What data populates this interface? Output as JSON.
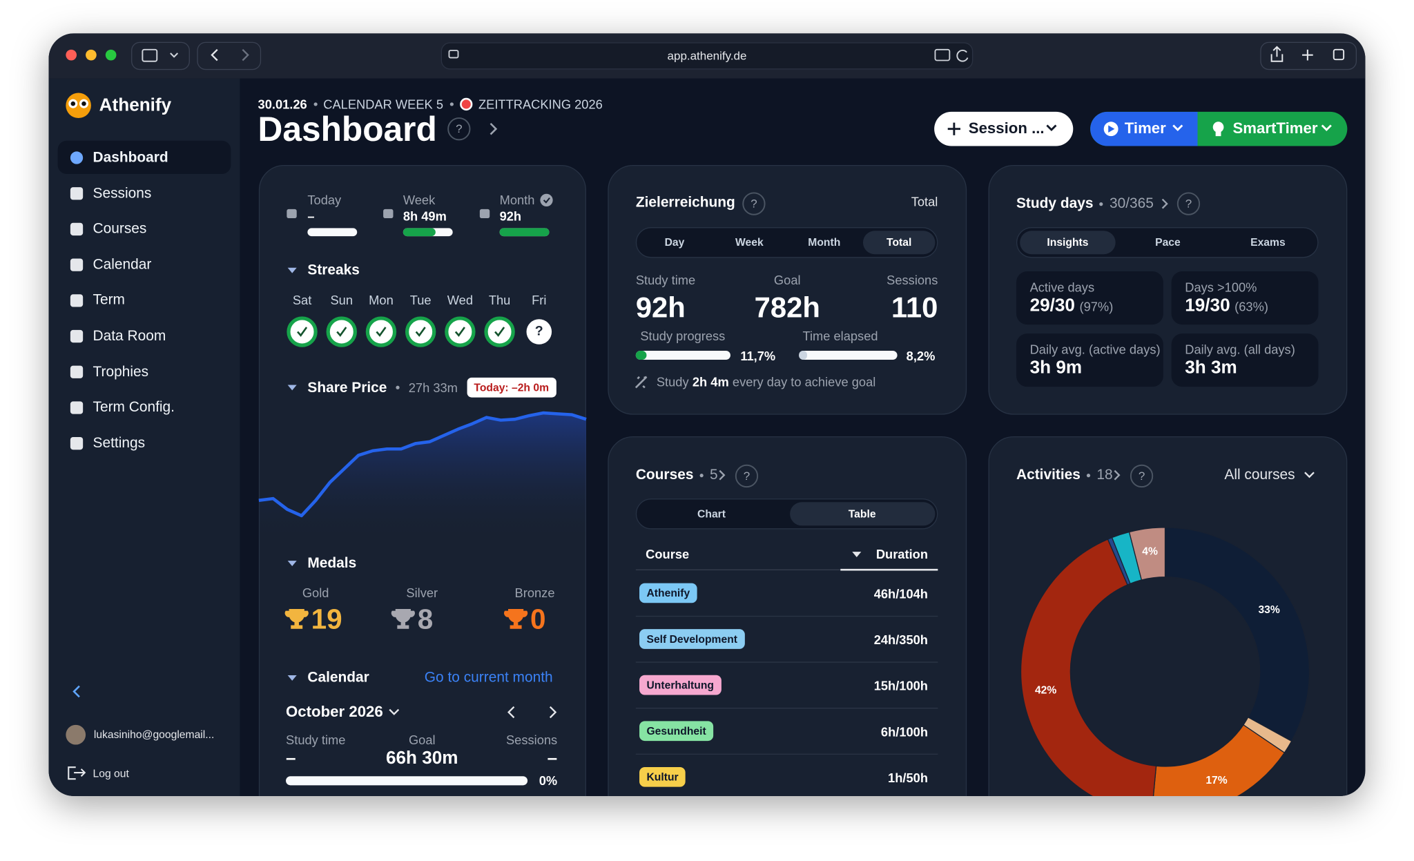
{
  "browser": {
    "url": "app.athenify.de"
  },
  "sidebar": {
    "brand": "Athenify",
    "nav": [
      "Dashboard",
      "Sessions",
      "Courses",
      "Calendar",
      "Term",
      "Data Room",
      "Trophies",
      "Term Config.",
      "Settings"
    ],
    "active": 0,
    "user": "lukasiniho@googlemail...",
    "logout": "Log out"
  },
  "header": {
    "date": "30.01.26",
    "week": "CALENDAR WEEK 5",
    "tracking": "ZEITTRACKING 2026",
    "title": "Dashboard",
    "help": "?",
    "session": "Session ...",
    "timer": "Timer",
    "smart_timer": "SmartTimer"
  },
  "overview": {
    "periods": [
      {
        "label": "Today",
        "value": "–",
        "progress": 0
      },
      {
        "label": "Week",
        "value": "8h 49m",
        "progress": 65
      },
      {
        "label": "Month",
        "value": "92h",
        "progress": 100
      }
    ]
  },
  "streaks": {
    "title": "Streaks",
    "days": [
      "Sat",
      "Sun",
      "Mon",
      "Tue",
      "Wed",
      "Thu",
      "Fri"
    ],
    "done": [
      true,
      true,
      true,
      true,
      true,
      true,
      false
    ]
  },
  "share_price": {
    "title": "Share Price",
    "total": "27h 33m",
    "today": "Today: –2h 0m"
  },
  "medals": {
    "title": "Medals",
    "items": [
      {
        "label": "Gold",
        "count": 19,
        "color": "#f2b53f"
      },
      {
        "label": "Silver",
        "count": 8,
        "color": "#a8a8b0"
      },
      {
        "label": "Bronze",
        "count": 0,
        "color": "#f5741d"
      }
    ]
  },
  "calendar": {
    "title": "Calendar",
    "link": "Go to current month",
    "month": "October 2026",
    "stats": [
      {
        "label": "Study time",
        "value": "–"
      },
      {
        "label": "Goal",
        "value": "66h 30m"
      },
      {
        "label": "Sessions",
        "value": "–"
      }
    ],
    "progress": 0,
    "progress_label": "0%"
  },
  "goals": {
    "title": "Zielerreichung",
    "scope": "Total",
    "tabs": [
      "Day",
      "Week",
      "Month",
      "Total"
    ],
    "active_tab": 3,
    "stats": [
      {
        "label": "Study time",
        "value": "92h"
      },
      {
        "label": "Goal",
        "value": "782h"
      },
      {
        "label": "Sessions",
        "value": "110"
      }
    ],
    "bars": [
      {
        "label": "Study progress",
        "progress": 11.7,
        "progress_label": "11,7%"
      },
      {
        "label": "Time elapsed",
        "progress": 8.2,
        "progress_label": "8,2%"
      }
    ],
    "tip": [
      "Study",
      "2h 4m",
      "every day to achieve goal"
    ]
  },
  "study_days": {
    "title": "Study days",
    "count": "30/365",
    "tabs": [
      "Insights",
      "Pace",
      "Exams"
    ],
    "active_tab": 0,
    "tiles": [
      {
        "label": "Active days",
        "value": "29/30",
        "note": "(97%)"
      },
      {
        "label": "Days >100%",
        "value": "19/30",
        "note": "(63%)"
      },
      {
        "label": "Daily avg. (active days)",
        "value": "3h 9m"
      },
      {
        "label": "Daily avg. (all days)",
        "value": "3h 3m"
      }
    ]
  },
  "courses": {
    "title": "Courses",
    "count": 5,
    "tabs": [
      "Chart",
      "Table"
    ],
    "active_tab": 1,
    "columns": [
      "Course",
      "Duration"
    ],
    "rows": [
      {
        "name": "Athenify",
        "duration": "46h/104h",
        "color": "#7cc8f5"
      },
      {
        "name": "Self Development",
        "duration": "24h/350h",
        "color": "#8ccdf2"
      },
      {
        "name": "Unterhaltung",
        "duration": "15h/100h",
        "color": "#f6a8cf"
      },
      {
        "name": "Gesundheit",
        "duration": "6h/100h",
        "color": "#86e3a3"
      },
      {
        "name": "Kultur",
        "duration": "1h/50h",
        "color": "#f7cf4a"
      }
    ]
  },
  "activities": {
    "title": "Activities",
    "count": 18,
    "filter": "All courses"
  },
  "chart_data": [
    {
      "type": "line",
      "values": [
        25,
        27,
        15,
        8,
        25,
        45,
        60,
        75,
        80,
        82,
        82,
        88,
        90,
        97,
        104,
        110,
        117,
        114,
        115,
        119,
        122,
        121,
        120,
        115
      ],
      "ylim": [
        0,
        130
      ],
      "color": "#2563eb"
    },
    {
      "type": "pie",
      "values": [
        33,
        1.5,
        17,
        42,
        0.5,
        2,
        4
      ],
      "value_labels": [
        "33%",
        null,
        "17%",
        "42%",
        null,
        null,
        "4%"
      ],
      "colors": [
        "#0f1e36",
        "#e7b98c",
        "#de600f",
        "#a3260f",
        "#254a8c",
        "#17b5c6",
        "#c08c82"
      ]
    }
  ]
}
